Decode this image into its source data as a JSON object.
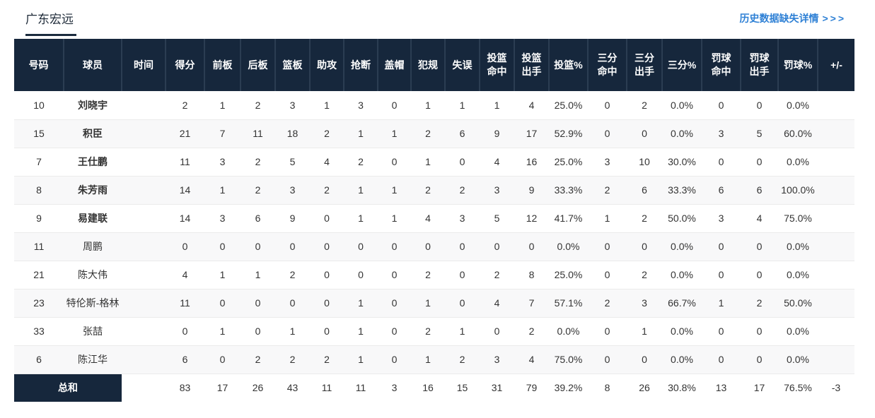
{
  "header": {
    "title": "广东宏远",
    "history_link_text": "历史数据缺失详情",
    "history_link_arrows": ">>>"
  },
  "colors": {
    "header_bg": "#16273c",
    "header_divider": "#2b3d52",
    "total_cell_bg": "#16273c",
    "link_blue": "#2e80d5",
    "stripe_bg": "#f8f8f9",
    "body_text": "#333333",
    "title_underline": "#1c2c3e"
  },
  "table": {
    "columns": [
      "号码",
      "球员",
      "时间",
      "得分",
      "前板",
      "后板",
      "篮板",
      "助攻",
      "抢断",
      "盖帽",
      "犯规",
      "失误",
      "投篮\n命中",
      "投篮\n出手",
      "投篮%",
      "三分\n命中",
      "三分\n出手",
      "三分%",
      "罚球\n命中",
      "罚球\n出手",
      "罚球%",
      "+/-"
    ],
    "rows": [
      {
        "number": "10",
        "player": "刘晓宇",
        "bold": true,
        "stats": [
          "",
          "2",
          "1",
          "2",
          "3",
          "1",
          "3",
          "0",
          "1",
          "1",
          "1",
          "4",
          "25.0%",
          "0",
          "2",
          "0.0%",
          "0",
          "0",
          "0.0%",
          ""
        ]
      },
      {
        "number": "15",
        "player": "积臣",
        "bold": true,
        "stats": [
          "",
          "21",
          "7",
          "11",
          "18",
          "2",
          "1",
          "1",
          "2",
          "6",
          "9",
          "17",
          "52.9%",
          "0",
          "0",
          "0.0%",
          "3",
          "5",
          "60.0%",
          ""
        ]
      },
      {
        "number": "7",
        "player": "王仕鹏",
        "bold": true,
        "stats": [
          "",
          "11",
          "3",
          "2",
          "5",
          "4",
          "2",
          "0",
          "1",
          "0",
          "4",
          "16",
          "25.0%",
          "3",
          "10",
          "30.0%",
          "0",
          "0",
          "0.0%",
          ""
        ]
      },
      {
        "number": "8",
        "player": "朱芳雨",
        "bold": true,
        "stats": [
          "",
          "14",
          "1",
          "2",
          "3",
          "2",
          "1",
          "1",
          "2",
          "2",
          "3",
          "9",
          "33.3%",
          "2",
          "6",
          "33.3%",
          "6",
          "6",
          "100.0%",
          ""
        ]
      },
      {
        "number": "9",
        "player": "易建联",
        "bold": true,
        "stats": [
          "",
          "14",
          "3",
          "6",
          "9",
          "0",
          "1",
          "1",
          "4",
          "3",
          "5",
          "12",
          "41.7%",
          "1",
          "2",
          "50.0%",
          "3",
          "4",
          "75.0%",
          ""
        ]
      },
      {
        "number": "11",
        "player": "周鹏",
        "bold": false,
        "stats": [
          "",
          "0",
          "0",
          "0",
          "0",
          "0",
          "0",
          "0",
          "0",
          "0",
          "0",
          "0",
          "0.0%",
          "0",
          "0",
          "0.0%",
          "0",
          "0",
          "0.0%",
          ""
        ]
      },
      {
        "number": "21",
        "player": "陈大伟",
        "bold": false,
        "stats": [
          "",
          "4",
          "1",
          "1",
          "2",
          "0",
          "0",
          "0",
          "2",
          "0",
          "2",
          "8",
          "25.0%",
          "0",
          "2",
          "0.0%",
          "0",
          "0",
          "0.0%",
          ""
        ]
      },
      {
        "number": "23",
        "player": "特伦斯-格林",
        "bold": false,
        "stats": [
          "",
          "11",
          "0",
          "0",
          "0",
          "0",
          "1",
          "0",
          "1",
          "0",
          "4",
          "7",
          "57.1%",
          "2",
          "3",
          "66.7%",
          "1",
          "2",
          "50.0%",
          ""
        ]
      },
      {
        "number": "33",
        "player": "张喆",
        "bold": false,
        "stats": [
          "",
          "0",
          "1",
          "0",
          "1",
          "0",
          "1",
          "0",
          "2",
          "1",
          "0",
          "2",
          "0.0%",
          "0",
          "1",
          "0.0%",
          "0",
          "0",
          "0.0%",
          ""
        ]
      },
      {
        "number": "6",
        "player": "陈江华",
        "bold": false,
        "stats": [
          "",
          "6",
          "0",
          "2",
          "2",
          "2",
          "1",
          "0",
          "1",
          "2",
          "3",
          "4",
          "75.0%",
          "0",
          "0",
          "0.0%",
          "0",
          "0",
          "0.0%",
          ""
        ]
      }
    ],
    "total": {
      "label": "总和",
      "stats": [
        "",
        "83",
        "17",
        "26",
        "43",
        "11",
        "11",
        "3",
        "16",
        "15",
        "31",
        "79",
        "39.2%",
        "8",
        "26",
        "30.8%",
        "13",
        "17",
        "76.5%",
        "-3"
      ]
    }
  }
}
